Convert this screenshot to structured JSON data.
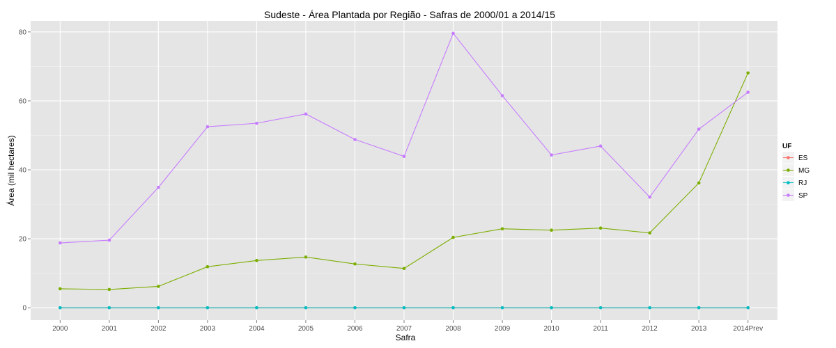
{
  "chart_data": {
    "type": "line",
    "title": "Sudeste  - Área Plantada por Região - Safras de 2000/01 a 2014/15",
    "xlabel": "Safra",
    "ylabel": "Área (mil hectares)",
    "categories": [
      "2000",
      "2001",
      "2002",
      "2003",
      "2004",
      "2005",
      "2006",
      "2007",
      "2008",
      "2009",
      "2010",
      "2011",
      "2012",
      "2013",
      "2014Prev"
    ],
    "ylim": [
      -3.6,
      83.2
    ],
    "yticks": [
      0,
      20,
      40,
      60,
      80
    ],
    "grid": true,
    "legend": {
      "title": "UF",
      "placement": "right"
    },
    "series": [
      {
        "name": "ES",
        "color": "#F8766D",
        "values": [
          0,
          0,
          0,
          0,
          0,
          0,
          0,
          0,
          0,
          0,
          0,
          0,
          0,
          0,
          0
        ]
      },
      {
        "name": "MG",
        "color": "#7CAE00",
        "values": [
          5.5,
          5.3,
          6.2,
          11.9,
          13.7,
          14.7,
          12.7,
          11.4,
          20.4,
          22.9,
          22.5,
          23.1,
          21.7,
          36.2,
          68.1
        ]
      },
      {
        "name": "RJ",
        "color": "#00BFC4",
        "values": [
          0,
          0,
          0,
          0,
          0,
          0,
          0,
          0,
          0,
          0,
          0,
          0,
          0,
          0,
          0
        ]
      },
      {
        "name": "SP",
        "color": "#C77CFF",
        "values": [
          18.8,
          19.6,
          34.9,
          52.5,
          53.5,
          56.2,
          48.8,
          43.9,
          79.6,
          61.5,
          44.3,
          46.9,
          32.1,
          51.8,
          62.5
        ]
      }
    ]
  }
}
